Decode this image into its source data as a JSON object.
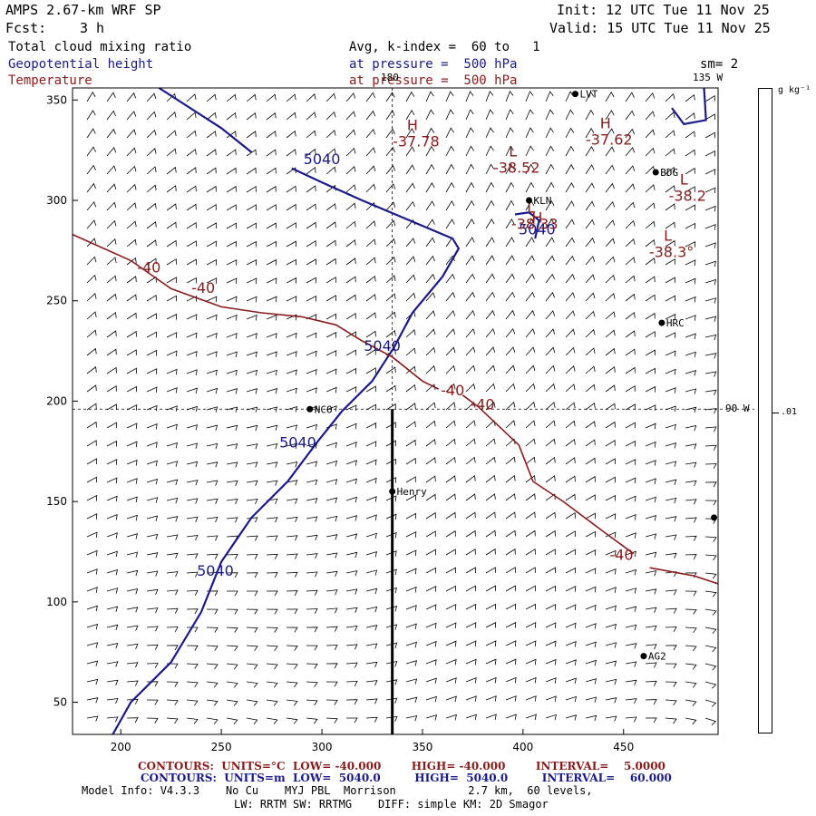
{
  "header": {
    "model_title": "AMPS 2.67-km WRF SP",
    "init": "Init: 12 UTC Tue 11 Nov 25",
    "fcst_label": "Fcst:",
    "fcst_value": "3 h",
    "valid": "Valid: 15 UTC Tue 11 Nov 25",
    "field1": "Total cloud mixing ratio",
    "field2": "Geopotential height",
    "field3": "Temperature",
    "avg": "Avg, k-index =  60 to   1",
    "pressure1": "at pressure =  500 hPa",
    "pressure2": "at pressure =  500 hPa",
    "sm": "sm= 2",
    "lon_180": "180",
    "lon_135": "135 W",
    "lon_90": "90 W"
  },
  "colorbar": {
    "units": "g kg⁻¹",
    "tick": ".01"
  },
  "stations": [
    {
      "name": "LVT",
      "x": 426,
      "y": 353
    },
    {
      "name": "BDG",
      "x": 466,
      "y": 314
    },
    {
      "name": "KLN",
      "x": 403,
      "y": 300
    },
    {
      "name": "HRC",
      "x": 469,
      "y": 239
    },
    {
      "name": "NCO",
      "x": 294,
      "y": 196
    },
    {
      "name": "Henry",
      "x": 335,
      "y": 155
    },
    {
      "name": "AG2",
      "x": 460,
      "y": 73
    },
    {
      "name": "",
      "x": 495,
      "y": 142
    }
  ],
  "extrema": [
    {
      "kind": "H",
      "value": "-37.78",
      "x": 345,
      "y": 335
    },
    {
      "kind": "H",
      "value": "-37.62",
      "x": 441,
      "y": 336
    },
    {
      "kind": "L",
      "value": "-38.52",
      "x": 395,
      "y": 322
    },
    {
      "kind": "L",
      "value": "-38.2",
      "x": 480,
      "y": 308
    },
    {
      "kind": "L",
      "value": "-38.33",
      "x": 404,
      "y": 294
    },
    {
      "kind": "H",
      "value": "",
      "x": 407,
      "y": 289
    },
    {
      "kind": "L",
      "value": "-38.3°",
      "x": 472,
      "y": 280
    }
  ],
  "contour_labels": [
    {
      "text": "5040",
      "color": "blue",
      "x": 300,
      "y": 318
    },
    {
      "text": "5040",
      "color": "blue",
      "x": 407,
      "y": 283
    },
    {
      "text": "5040",
      "color": "blue",
      "x": 330,
      "y": 225
    },
    {
      "text": "5040",
      "color": "blue",
      "x": 288,
      "y": 177
    },
    {
      "text": "5040",
      "color": "blue",
      "x": 247,
      "y": 113
    },
    {
      "text": "-40",
      "color": "red",
      "x": 214,
      "y": 264
    },
    {
      "text": "-40",
      "color": "red",
      "x": 241,
      "y": 254
    },
    {
      "text": "-40",
      "color": "red",
      "x": 365,
      "y": 203
    },
    {
      "text": "-40",
      "color": "red",
      "x": 380,
      "y": 196
    },
    {
      "text": "-40",
      "color": "red",
      "x": 449,
      "y": 121
    }
  ],
  "footer": {
    "red_line": "CONTOURS:  UNITS=°C  LOW= -40.000        HIGH= -40.000        INTERVAL=    5.0000",
    "blue_line": "CONTOURS:  UNITS=m  LOW=  5040.0         HIGH=  5040.0         INTERVAL=    60.000",
    "model_info": "Model Info: V4.3.3    No Cu    MYJ PBL  Morrison           2.7 km,  60 levels,",
    "model_info2": "LW: RRTM SW: RRTMG    DIFF: simple KM: 2D Smagor"
  },
  "chart_data": {
    "type": "map",
    "title": "Total cloud mixing ratio / Geopotential height / Temperature (500 hPa)",
    "x_ticks": [
      200,
      250,
      300,
      350,
      400,
      450
    ],
    "y_ticks": [
      50,
      100,
      150,
      200,
      250,
      300,
      350
    ],
    "xlim": [
      176,
      497
    ],
    "ylim": [
      34,
      356
    ],
    "height_contours": {
      "level": 5040,
      "units": "m",
      "lines": [
        [
          [
            219,
            356
          ],
          [
            250,
            336
          ],
          [
            265,
            324
          ]
        ],
        [
          [
            285,
            316
          ],
          [
            300,
            309
          ],
          [
            320,
            300
          ],
          [
            365,
            281
          ],
          [
            368,
            276
          ],
          [
            360,
            262
          ],
          [
            345,
            244
          ],
          [
            336,
            227
          ],
          [
            325,
            210
          ],
          [
            310,
            195
          ],
          [
            298,
            180
          ],
          [
            283,
            160
          ],
          [
            265,
            142
          ],
          [
            250,
            120
          ],
          [
            240,
            95
          ],
          [
            225,
            70
          ],
          [
            205,
            50
          ],
          [
            196,
            34
          ]
        ],
        [
          [
            396,
            293
          ],
          [
            403,
            294
          ],
          [
            408,
            290
          ],
          [
            406,
            281
          ]
        ],
        [
          [
            474,
            346
          ],
          [
            480,
            338
          ],
          [
            491,
            340
          ],
          [
            490,
            356
          ]
        ]
      ]
    },
    "temperature_contours": {
      "level": -40,
      "units": "degC",
      "lines": [
        [
          [
            176,
            283
          ],
          [
            205,
            270
          ],
          [
            225,
            256
          ],
          [
            250,
            247
          ],
          [
            270,
            244
          ],
          [
            290,
            242
          ],
          [
            307,
            238
          ],
          [
            320,
            230
          ],
          [
            335,
            222
          ],
          [
            350,
            210
          ],
          [
            358,
            206
          ]
        ],
        [
          [
            370,
            203
          ],
          [
            378,
            197
          ],
          [
            398,
            178
          ],
          [
            405,
            160
          ],
          [
            420,
            150
          ],
          [
            440,
            135
          ],
          [
            455,
            124
          ]
        ],
        [
          [
            463,
            117
          ],
          [
            485,
            113
          ],
          [
            497,
            109
          ]
        ]
      ]
    },
    "crosshair": {
      "x": 335,
      "y": 196
    },
    "transect": {
      "x": 335,
      "y0": 34,
      "y1": 196
    }
  }
}
